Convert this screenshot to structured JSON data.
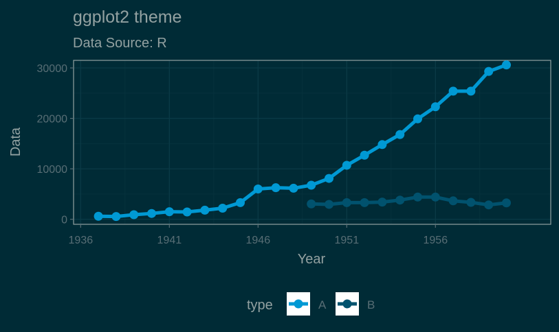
{
  "chart_data": {
    "type": "line",
    "title": "ggplot2 theme",
    "subtitle": "Data Source: R",
    "xlabel": "Year",
    "ylabel": "Data",
    "xlim": [
      1935.6,
      1962.5
    ],
    "ylim": [
      -1000,
      31500
    ],
    "x_ticks": [
      1936,
      1941,
      1946,
      1951,
      1956
    ],
    "x_tick_labels": [
      "1936",
      "1941",
      "1946",
      "1951",
      "1956"
    ],
    "y_ticks": [
      0,
      10000,
      20000,
      30000
    ],
    "y_tick_labels": [
      "0",
      "10000",
      "20000",
      "30000"
    ],
    "grid": true,
    "legend_position": "bottom",
    "legend_title": "type",
    "series": [
      {
        "name": "A",
        "color": "#0099d4",
        "x": [
          1937,
          1938,
          1939,
          1940,
          1941,
          1942,
          1943,
          1944,
          1945,
          1946,
          1947,
          1948,
          1949,
          1950,
          1951,
          1952,
          1953,
          1954,
          1955,
          1956,
          1957,
          1958,
          1959,
          1960
        ],
        "values": [
          600,
          550,
          900,
          1150,
          1500,
          1450,
          1800,
          2200,
          3300,
          6000,
          6250,
          6150,
          6750,
          8100,
          10700,
          12700,
          14800,
          16800,
          19900,
          22300,
          25400,
          25400,
          29300,
          30600
        ]
      },
      {
        "name": "B",
        "color": "#01526e",
        "x": [
          1949,
          1950,
          1951,
          1952,
          1953,
          1954,
          1955,
          1956,
          1957,
          1958,
          1959,
          1960
        ],
        "values": [
          3050,
          2950,
          3300,
          3300,
          3400,
          3800,
          4400,
          4400,
          3650,
          3350,
          2850,
          3250
        ]
      }
    ]
  }
}
